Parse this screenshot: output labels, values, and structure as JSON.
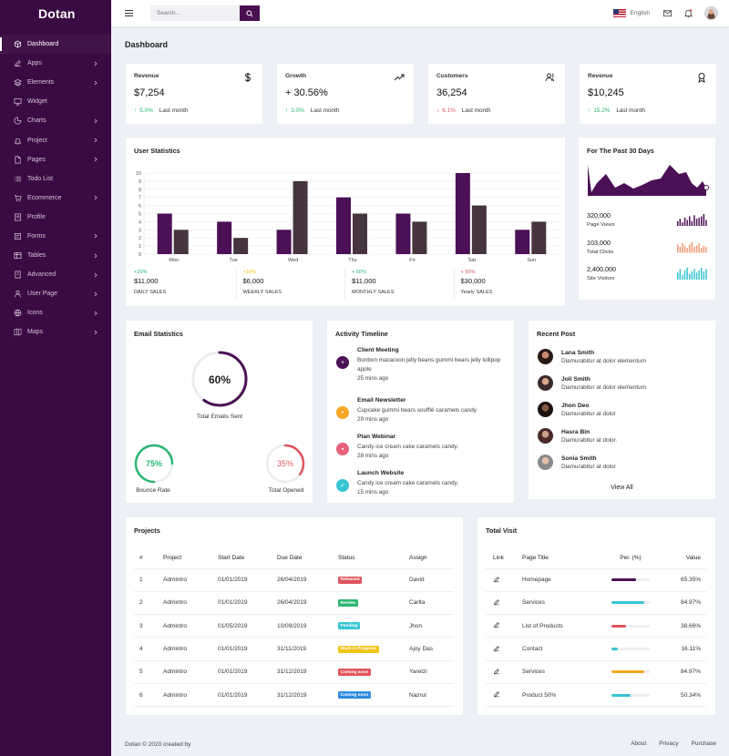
{
  "brand": {
    "name": "Dotan"
  },
  "sidebar": {
    "items": [
      {
        "label": "Dashboard",
        "icon": "cube-icon",
        "chevron": false,
        "active": true
      },
      {
        "label": "Apps",
        "icon": "edit-icon",
        "chevron": true
      },
      {
        "label": "Elements",
        "icon": "layers-icon",
        "chevron": true
      },
      {
        "label": "Widget",
        "icon": "monitor-icon",
        "chevron": false
      },
      {
        "label": "Charts",
        "icon": "pie-chart-icon",
        "chevron": true
      },
      {
        "label": "Project",
        "icon": "bell-icon",
        "chevron": true
      },
      {
        "label": "Pages",
        "icon": "file-icon",
        "chevron": true
      },
      {
        "label": "Todo List",
        "icon": "list-icon",
        "chevron": false
      },
      {
        "label": "Ecommerce",
        "icon": "cart-icon",
        "chevron": true
      },
      {
        "label": "Profile",
        "icon": "profile-icon",
        "chevron": false
      },
      {
        "label": "Forms",
        "icon": "form-icon",
        "chevron": true
      },
      {
        "label": "Tables",
        "icon": "table-icon",
        "chevron": true
      },
      {
        "label": "Advanced",
        "icon": "advanced-icon",
        "chevron": true
      },
      {
        "label": "User Page",
        "icon": "user-icon",
        "chevron": true
      },
      {
        "label": "Icons",
        "icon": "globe-icon",
        "chevron": true
      },
      {
        "label": "Maps",
        "icon": "map-icon",
        "chevron": true
      }
    ]
  },
  "topbar": {
    "search_placeholder": "Search...",
    "language": "English"
  },
  "page": {
    "title": "Dashboard"
  },
  "stats": [
    {
      "label": "Revenue",
      "value": "$7,254",
      "change": "5.0%",
      "trend": "up",
      "period": "Last month",
      "icon": "dollar-icon"
    },
    {
      "label": "Growth",
      "value": "+ 30.56%",
      "change": "3.0%",
      "trend": "up",
      "period": "Last month",
      "icon": "trending-up-icon"
    },
    {
      "label": "Customers",
      "value": "36,254",
      "change": "6.1%",
      "trend": "down",
      "period": "Last month",
      "icon": "users-icon"
    },
    {
      "label": "Revenue",
      "value": "$10,245",
      "change": "15.2%",
      "trend": "up",
      "period": "Last month",
      "icon": "award-icon"
    }
  ],
  "user_statistics": {
    "title": "User Statistics",
    "summary": [
      {
        "change": "+20%",
        "value": "$11,000",
        "label": "DAILY SALES",
        "color": "#2bb673"
      },
      {
        "change": "+10%",
        "value": "$6,000",
        "label": "WEEKLY SALES",
        "color": "#f0c419"
      },
      {
        "change": "+ 60%",
        "value": "$11,000",
        "label": "MONTHLY SALES",
        "color": "#2bb673"
      },
      {
        "change": "+ 50%",
        "value": "$30,000",
        "label": "Yearly SALES",
        "color": "#e0545c"
      }
    ]
  },
  "chart_data": {
    "type": "bar",
    "categories": [
      "Mon",
      "Tue",
      "Wed",
      "Thu",
      "Fri",
      "Sat",
      "Sun"
    ],
    "ylim": [
      0,
      10
    ],
    "yticks": [
      "0",
      "1",
      "2",
      "3",
      "4",
      "5",
      "6",
      "7",
      "8",
      "9",
      "10"
    ],
    "grid": true,
    "series": [
      {
        "values": [
          5,
          4,
          3,
          7,
          5,
          10,
          3
        ],
        "color": "#4b1056"
      },
      {
        "values": [
          3,
          2,
          9,
          5,
          4,
          6,
          4
        ],
        "color": "#46343f"
      }
    ]
  },
  "past30": {
    "title": "For The Past 30 Days",
    "metrics": [
      {
        "value": "320,000",
        "label": "Page Views",
        "color": "#4b1056"
      },
      {
        "value": "103,000",
        "label": "Total Clicks",
        "color": "#f29b72"
      },
      {
        "value": "2,400,000",
        "label": "Site Visitors",
        "color": "#38c5d3"
      }
    ]
  },
  "email": {
    "title": "Email Statistics",
    "main_pct": "60%",
    "main_label": "Total Emails Sent",
    "main_fraction": 0.6,
    "bounce_pct": "75%",
    "bounce_label": "Bounce Rate",
    "bounce_fraction": 0.75,
    "opened_pct": "35%",
    "opened_label": "Total Opened",
    "opened_fraction": 0.35
  },
  "timeline": {
    "title": "Activity Timeline",
    "items": [
      {
        "title": "Client Meeting",
        "text": "Bonbon macaroon jelly beans gummi bears jelly lollipop apple",
        "time": "25 mins ago",
        "color": "#4b1056",
        "glyph": "+"
      },
      {
        "title": "Email Newsletter",
        "text": "Cupcake gummi bears soufflé caramels candy",
        "time": "29 mins ago",
        "color": "#f5a623",
        "glyph": "•"
      },
      {
        "title": "Plan Webinar",
        "text": "Candy ice cream cake caramels candy.",
        "time": "28 mins ago",
        "color": "#e8607a",
        "glyph": "▪"
      },
      {
        "title": "Launch Website",
        "text": "Candy ice cream cake caramels candy.",
        "time": "15 mins ago",
        "color": "#38c5d3",
        "glyph": "✓"
      }
    ]
  },
  "recent": {
    "title": "Recent Post",
    "view_all": "View All",
    "items": [
      {
        "name": "Lana Smith",
        "text": "Diamurabitur at dolor elementum"
      },
      {
        "name": "Joli Smith",
        "text": "Diamurabitur at dolor elementum"
      },
      {
        "name": "Jhon Deo",
        "text": "Diamurabitur at dolor"
      },
      {
        "name": "Hasra Bin",
        "text": "Diamurabitur at dolor."
      },
      {
        "name": "Sonia Smith",
        "text": "Diamurabitur at dolor"
      }
    ]
  },
  "projects": {
    "title": "Projects",
    "headers": [
      "#",
      "Project",
      "Start Date",
      "Due Date",
      "Status",
      "Assign"
    ],
    "rows": [
      {
        "n": "1",
        "project": "Admintro",
        "start": "01/01/2019",
        "due": "26/04/2019",
        "status": "Released",
        "status_color": "#e0545c",
        "assign": "David"
      },
      {
        "n": "2",
        "project": "Admintro",
        "start": "01/01/2019",
        "due": "26/04/2019",
        "status": "Review",
        "status_color": "#2bb673",
        "assign": "Carlta"
      },
      {
        "n": "3",
        "project": "Admintro",
        "start": "01/05/2019",
        "due": "10/09/2019",
        "status": "Pending",
        "status_color": "#38c5d3",
        "assign": "Jhon"
      },
      {
        "n": "4",
        "project": "Admintro",
        "start": "01/01/2019",
        "due": "31/11/2019",
        "status": "Work in Progress",
        "status_color": "#f0c419",
        "assign": "Ajoy Das"
      },
      {
        "n": "5",
        "project": "Admintro",
        "start": "01/01/2019",
        "due": "31/12/2019",
        "status": "Coming soon",
        "status_color": "#e0545c",
        "assign": "Yaretzi"
      },
      {
        "n": "6",
        "project": "Admintro",
        "start": "01/01/2019",
        "due": "31/12/2019",
        "status": "Coming soon",
        "status_color": "#2f8ae0",
        "assign": "Nazrul"
      }
    ]
  },
  "visits": {
    "title": "Total Visit",
    "headers": [
      "Link",
      "Page Title",
      "Per. (%)",
      "Value"
    ],
    "rows": [
      {
        "page": "Homepage",
        "value": "65.35%",
        "fraction": 0.65,
        "color": "#4b1056"
      },
      {
        "page": "Services",
        "value": "84.97%",
        "fraction": 0.85,
        "color": "#38c5d3"
      },
      {
        "page": "List of Products",
        "value": "38.66%",
        "fraction": 0.39,
        "color": "#e0545c"
      },
      {
        "page": "Contact",
        "value": "16.11%",
        "fraction": 0.16,
        "color": "#38c5d3"
      },
      {
        "page": "Services",
        "value": "84.97%",
        "fraction": 0.85,
        "color": "#f5a623"
      },
      {
        "page": "Product 50%",
        "value": "50.34%",
        "fraction": 0.5,
        "color": "#38c5d3"
      }
    ]
  },
  "footer": {
    "copyright": "Dotan © 2020 created by",
    "links": [
      "About",
      "Privacy",
      "Purchase"
    ]
  }
}
